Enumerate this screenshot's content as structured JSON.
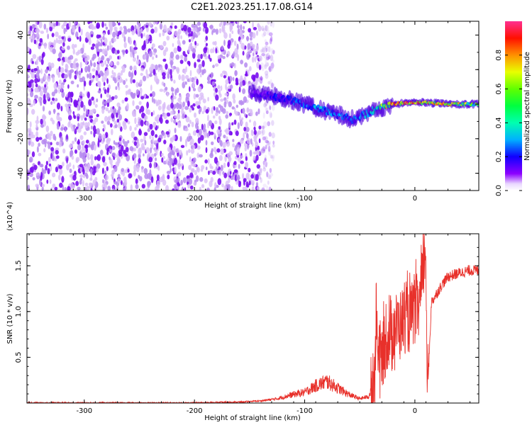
{
  "figure_title": "C2E1.2023.251.17.08.G14",
  "colors": {
    "snr_line": "#e8302a",
    "spectrogram_low": "#b98be8",
    "spectrogram_mid": "#7b00ff"
  },
  "chart_data": [
    {
      "type": "heatmap",
      "title": "",
      "xlabel": "Height of straight line (km)",
      "ylabel": "Frequency (Hz)",
      "xlim": [
        -352,
        58
      ],
      "ylim": [
        -50,
        48
      ],
      "xticks": [
        -300,
        -200,
        -100,
        0
      ],
      "yticks": [
        -40,
        -20,
        0,
        20,
        40
      ],
      "grid": false,
      "colorbar": {
        "label": "Normalized spectral amplitude",
        "range": [
          0,
          1
        ],
        "ticks": [
          0.0,
          0.2,
          0.4,
          0.6,
          0.8
        ],
        "tick_labels": [
          "0.0",
          "0.2",
          "0.4",
          "0.6",
          "0.8"
        ],
        "colormap": [
          "#ffffff",
          "#d8b4ff",
          "#8000ff",
          "#0000ff",
          "#00c8ff",
          "#00ff80",
          "#60ff00",
          "#ffff00",
          "#ff8000",
          "#ff0000",
          "#ff40a0"
        ]
      },
      "noise_region_km": [
        -352,
        -140
      ],
      "signal_ridge": {
        "height_km": [
          -150,
          -130,
          -110,
          -90,
          -70,
          -55,
          -45,
          -35,
          -20,
          0,
          10,
          30,
          58
        ],
        "frequency_hz": [
          6,
          5,
          2,
          -2,
          -6,
          -9,
          -6,
          -3,
          0,
          1,
          1,
          0,
          0
        ],
        "peak_amplitude": [
          0.2,
          0.3,
          0.35,
          0.4,
          0.4,
          0.35,
          0.4,
          0.5,
          0.85,
          0.9,
          0.8,
          0.75,
          0.6
        ]
      }
    },
    {
      "type": "line",
      "title": "",
      "xlabel": "Height of straight line (km)",
      "ylabel": "SNR (10 * v/v)",
      "y_multiplier_label": "(x10^4)",
      "xlim": [
        -352,
        58
      ],
      "ylim": [
        0,
        1.85
      ],
      "xticks": [
        -300,
        -200,
        -100,
        0
      ],
      "yticks": [
        0.5,
        1.0,
        1.5
      ],
      "ytick_labels": [
        "0.5",
        "1.0",
        "1.5"
      ],
      "grid": false,
      "series": [
        {
          "height_km": [
            -352,
            -300,
            -250,
            -200,
            -160,
            -140,
            -125,
            -110,
            -100,
            -90,
            -80,
            -70,
            -60,
            -50,
            -42,
            -38,
            -36,
            -35,
            -33,
            -30,
            -25,
            -20,
            -15,
            -10,
            -5,
            0,
            5,
            8,
            10,
            11,
            12,
            15,
            20,
            25,
            30,
            40,
            50,
            58
          ],
          "snr_x1e4": [
            0.0,
            0.0,
            0.0,
            0.0,
            0.01,
            0.02,
            0.04,
            0.08,
            0.1,
            0.16,
            0.2,
            0.14,
            0.08,
            0.04,
            0.06,
            0.15,
            0.55,
            1.0,
            0.6,
            0.55,
            0.75,
            0.85,
            0.9,
            0.95,
            0.95,
            1.05,
            1.15,
            1.55,
            1.7,
            0.5,
            0.22,
            1.1,
            1.2,
            1.3,
            1.38,
            1.42,
            1.45,
            1.45
          ]
        }
      ]
    }
  ]
}
